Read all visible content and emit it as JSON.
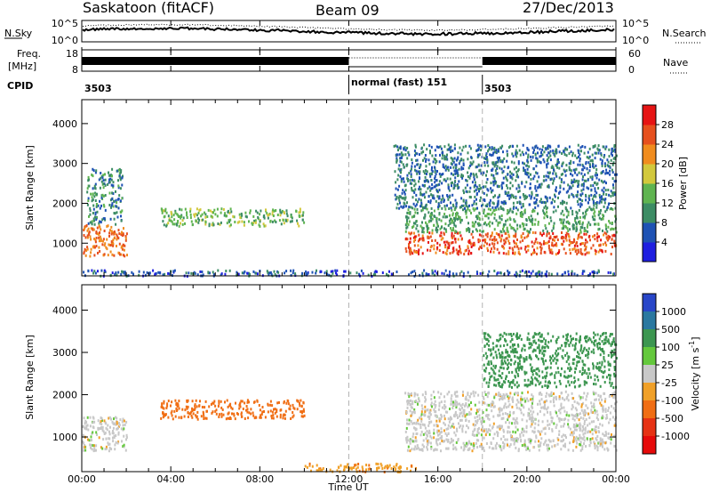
{
  "header": {
    "station": "Saskatoon (fitACF)",
    "beam": "Beam 09",
    "date": "27/Dec/2013"
  },
  "noise_panel": {
    "left_label": "N.Sky",
    "right_label": "N.Search",
    "left_ticks": [
      "10^5",
      "10^0"
    ],
    "right_ticks": [
      "10^5",
      "10^0"
    ]
  },
  "freq_panel": {
    "left_label_top": "Freq.",
    "left_label_bottom": "[MHz]",
    "left_ticks": [
      "18",
      "8"
    ],
    "right_label": "Nave",
    "right_ticks": [
      "60",
      "0"
    ]
  },
  "cpid": {
    "label": "CPID",
    "segments": [
      {
        "start_hour": 0,
        "text": "3503"
      },
      {
        "start_hour": 12,
        "text": "normal (fast) 151"
      },
      {
        "start_hour": 18,
        "text": "3503"
      }
    ]
  },
  "x_axis": {
    "label": "Time UT",
    "ticks": [
      "00:00",
      "04:00",
      "08:00",
      "12:00",
      "16:00",
      "20:00",
      "00:00"
    ],
    "tick_hours": [
      0,
      4,
      8,
      12,
      16,
      20,
      24
    ],
    "range_hours": [
      0,
      24
    ],
    "dashed_markers_hours": [
      12,
      18
    ]
  },
  "power_panel": {
    "ylabel": "Slant Range [km]",
    "yticks": [
      "1000",
      "2000",
      "3000",
      "4000"
    ],
    "ytick_values": [
      1000,
      2000,
      3000,
      4000
    ],
    "yrange_km": [
      180,
      4600
    ],
    "colorbar": {
      "label": "Power [dB]",
      "tick_labels": [
        "4",
        "8",
        "12",
        "16",
        "20",
        "24",
        "28"
      ],
      "colors": [
        "#1f1fe0",
        "#1e52b4",
        "#3c8c64",
        "#5fb450",
        "#d2c83c",
        "#f08c1e",
        "#e6501e",
        "#e61414"
      ]
    }
  },
  "velocity_panel": {
    "ylabel": "Slant Range [km]",
    "yticks": [
      "1000",
      "2000",
      "3000",
      "4000"
    ],
    "ytick_values": [
      1000,
      2000,
      3000,
      4000
    ],
    "yrange_km": [
      180,
      4600
    ],
    "colorbar": {
      "label_main": "Velocity  [m s",
      "label_sup": "-1",
      "label_end": "]",
      "tick_labels": [
        "1000",
        "500",
        "100",
        "25",
        "-25",
        "-100",
        "-500",
        "-1000"
      ],
      "colors": [
        "#2846c8",
        "#2a78a0",
        "#3c9650",
        "#64c83c",
        "#c8c8c8",
        "#f0a028",
        "#f06e14",
        "#e63214",
        "#e60a0a"
      ]
    }
  },
  "chart_data": {
    "type": "heatmap",
    "title": "Saskatoon (fitACF)  Beam 09  27/Dec/2013",
    "xlabel": "Time UT",
    "ylabel": "Slant Range [km]",
    "xlim_hours": [
      0,
      24
    ],
    "ylim_km": [
      180,
      4600
    ],
    "power_echo_regions": [
      {
        "t0": 0.0,
        "t1": 2.0,
        "r0": 700,
        "r1": 1500,
        "power_db": 24
      },
      {
        "t0": 0.2,
        "t1": 1.8,
        "r0": 1500,
        "r1": 2900,
        "power_db": 10
      },
      {
        "t0": 3.5,
        "t1": 10.0,
        "r0": 1450,
        "r1": 1900,
        "power_db": 14
      },
      {
        "t0": 14.5,
        "t1": 24.0,
        "r0": 750,
        "r1": 1300,
        "power_db": 26
      },
      {
        "t0": 14.5,
        "t1": 24.0,
        "r0": 1300,
        "r1": 1900,
        "power_db": 12
      },
      {
        "t0": 14.0,
        "t1": 24.0,
        "r0": 1900,
        "r1": 3500,
        "power_db": 8
      },
      {
        "t0": 0.0,
        "t1": 24.0,
        "r0": 200,
        "r1": 350,
        "power_db": 6
      }
    ],
    "velocity_echo_regions": [
      {
        "t0": 0.0,
        "t1": 2.0,
        "r0": 700,
        "r1": 1500,
        "velocity": 0
      },
      {
        "t0": 3.5,
        "t1": 10.0,
        "r0": 1450,
        "r1": 1900,
        "velocity": -200
      },
      {
        "t0": 14.5,
        "t1": 24.0,
        "r0": 700,
        "r1": 2100,
        "velocity": 0
      },
      {
        "t0": 18.0,
        "t1": 24.0,
        "r0": 2200,
        "r1": 3500,
        "velocity": 150
      },
      {
        "t0": 10.0,
        "t1": 15.0,
        "r0": 200,
        "r1": 400,
        "velocity": -80
      }
    ]
  }
}
